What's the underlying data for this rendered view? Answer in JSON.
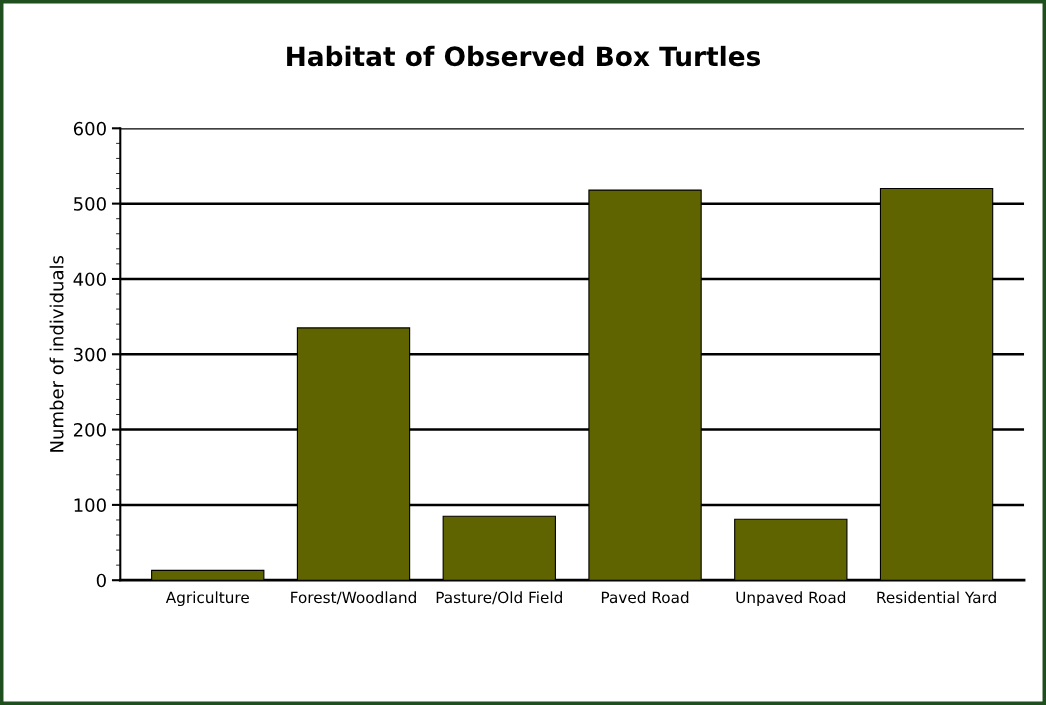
{
  "chart_data": {
    "type": "bar",
    "title": "Habitat of Observed Box Turtles",
    "ylabel": "Number of individuals",
    "categories": [
      "Agriculture",
      "Forest/Woodland",
      "Pasture/Old Field",
      "Paved Road",
      "Unpaved Road",
      "Residential Yard"
    ],
    "values": [
      13,
      335,
      85,
      518,
      81,
      520
    ],
    "color": "#606400",
    "ylim": [
      0,
      600
    ],
    "yticks": [
      0,
      100,
      200,
      300,
      400,
      500,
      600
    ],
    "grid": "y",
    "legend": false
  }
}
